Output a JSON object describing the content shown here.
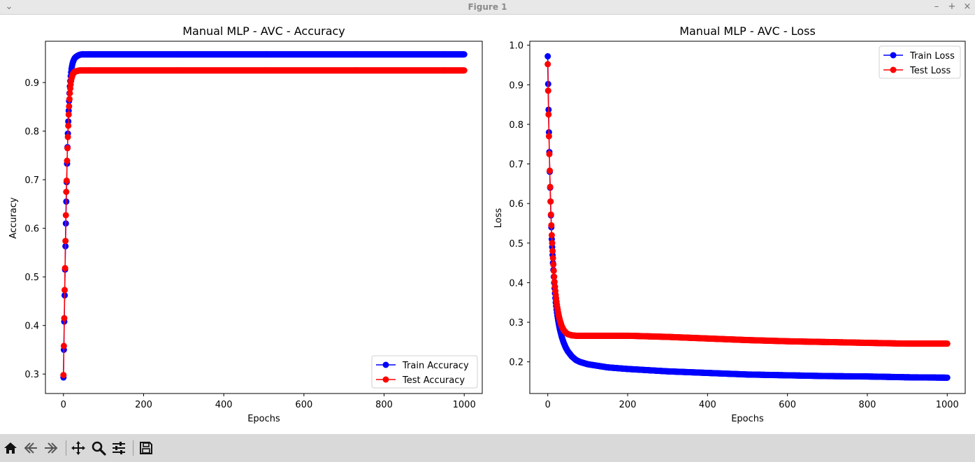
{
  "window": {
    "title": "Figure 1"
  },
  "toolbar": {
    "icons": [
      "home-icon",
      "back-icon",
      "forward-icon",
      "pan-icon",
      "zoom-icon",
      "configure-icon",
      "save-icon"
    ]
  },
  "chart_data": [
    {
      "type": "line",
      "title": "Manual MLP - AVC - Accuracy",
      "xlabel": "Epochs",
      "ylabel": "Accuracy",
      "xlim": [
        -45,
        1045
      ],
      "ylim": [
        0.26,
        0.985
      ],
      "xticks": [
        0,
        200,
        400,
        600,
        800,
        1000
      ],
      "yticks": [
        0.3,
        0.4,
        0.5,
        0.6,
        0.7,
        0.8,
        0.9
      ],
      "grid": false,
      "legend": "lower right",
      "x": [
        0,
        1,
        2,
        3,
        4,
        5,
        6,
        7,
        8,
        9,
        10,
        11,
        12,
        13,
        14,
        15,
        16,
        17,
        18,
        19,
        20,
        22,
        24,
        26,
        28,
        30,
        35,
        40,
        45,
        50,
        60,
        70,
        80,
        100,
        150,
        200,
        300,
        400,
        500,
        600,
        700,
        800,
        900,
        1000
      ],
      "series": [
        {
          "name": "Train Accuracy",
          "color": "#0000ff",
          "values": [
            0.293,
            0.35,
            0.408,
            0.462,
            0.515,
            0.563,
            0.61,
            0.655,
            0.695,
            0.733,
            0.767,
            0.795,
            0.82,
            0.842,
            0.862,
            0.878,
            0.892,
            0.903,
            0.913,
            0.921,
            0.928,
            0.937,
            0.943,
            0.947,
            0.95,
            0.952,
            0.955,
            0.957,
            0.958,
            0.958,
            0.958,
            0.958,
            0.958,
            0.958,
            0.958,
            0.958,
            0.958,
            0.958,
            0.958,
            0.958,
            0.958,
            0.958,
            0.958,
            0.958
          ]
        },
        {
          "name": "Test Accuracy",
          "color": "#ff0000",
          "values": [
            0.298,
            0.358,
            0.415,
            0.473,
            0.518,
            0.574,
            0.627,
            0.675,
            0.698,
            0.739,
            0.765,
            0.788,
            0.811,
            0.834,
            0.851,
            0.866,
            0.878,
            0.888,
            0.896,
            0.903,
            0.908,
            0.914,
            0.918,
            0.92,
            0.922,
            0.923,
            0.924,
            0.925,
            0.925,
            0.925,
            0.925,
            0.925,
            0.925,
            0.925,
            0.925,
            0.925,
            0.925,
            0.925,
            0.925,
            0.925,
            0.925,
            0.925,
            0.925,
            0.925
          ]
        }
      ]
    },
    {
      "type": "line",
      "title": "Manual MLP - AVC - Loss",
      "xlabel": "Epochs",
      "ylabel": "Loss",
      "xlim": [
        -45,
        1045
      ],
      "ylim": [
        0.12,
        1.01
      ],
      "xticks": [
        0,
        200,
        400,
        600,
        800,
        1000
      ],
      "yticks": [
        0.2,
        0.3,
        0.4,
        0.5,
        0.6,
        0.7,
        0.8,
        0.9,
        1.0
      ],
      "grid": false,
      "legend": "upper right",
      "x": [
        0,
        1,
        2,
        3,
        4,
        5,
        6,
        7,
        8,
        9,
        10,
        11,
        12,
        13,
        14,
        15,
        16,
        17,
        18,
        19,
        20,
        22,
        24,
        26,
        28,
        30,
        35,
        40,
        45,
        50,
        60,
        70,
        80,
        100,
        150,
        200,
        300,
        400,
        500,
        600,
        700,
        800,
        900,
        1000
      ],
      "series": [
        {
          "name": "Train Loss",
          "color": "#0000ff",
          "values": [
            0.972,
            0.902,
            0.837,
            0.78,
            0.73,
            0.68,
            0.64,
            0.605,
            0.57,
            0.54,
            0.51,
            0.49,
            0.47,
            0.45,
            0.432,
            0.415,
            0.4,
            0.386,
            0.373,
            0.361,
            0.35,
            0.332,
            0.317,
            0.304,
            0.293,
            0.283,
            0.263,
            0.248,
            0.236,
            0.227,
            0.214,
            0.205,
            0.2,
            0.194,
            0.186,
            0.182,
            0.176,
            0.172,
            0.168,
            0.166,
            0.164,
            0.163,
            0.161,
            0.16
          ]
        },
        {
          "name": "Test Loss",
          "color": "#ff0000",
          "values": [
            0.952,
            0.885,
            0.825,
            0.77,
            0.725,
            0.683,
            0.642,
            0.605,
            0.572,
            0.545,
            0.52,
            0.5,
            0.48,
            0.462,
            0.446,
            0.43,
            0.415,
            0.402,
            0.39,
            0.379,
            0.369,
            0.352,
            0.337,
            0.325,
            0.315,
            0.306,
            0.29,
            0.28,
            0.274,
            0.27,
            0.267,
            0.266,
            0.266,
            0.266,
            0.266,
            0.266,
            0.263,
            0.259,
            0.255,
            0.252,
            0.25,
            0.248,
            0.246,
            0.246
          ]
        }
      ]
    }
  ]
}
